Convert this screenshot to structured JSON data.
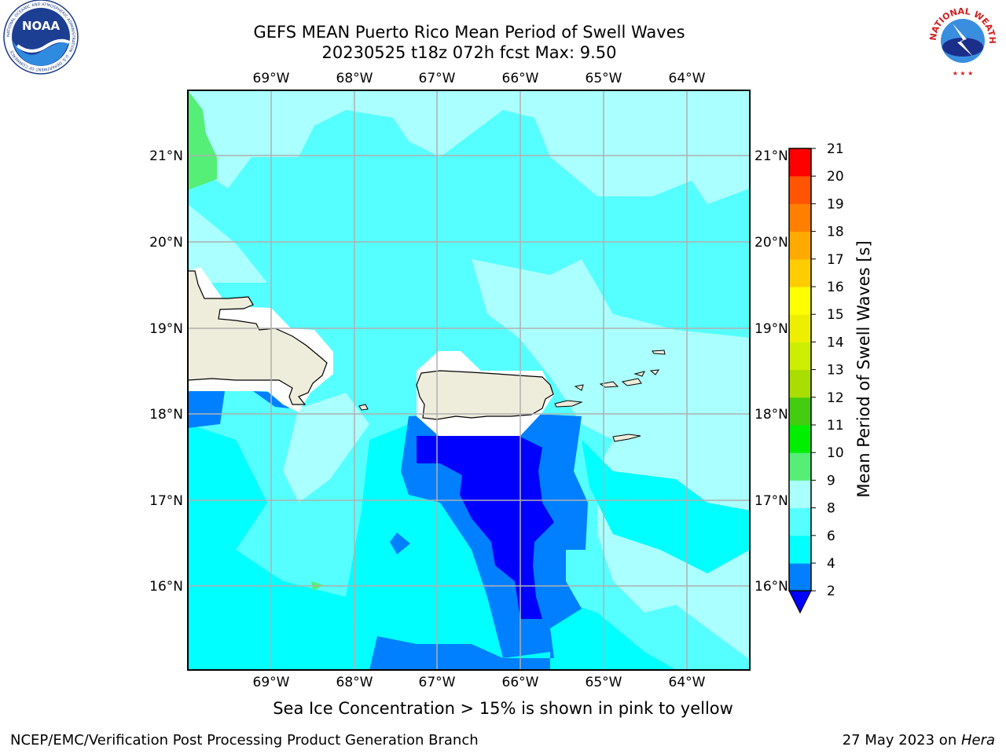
{
  "title": {
    "line1": "GEFS MEAN Puerto Rico Mean Period of Swell Waves",
    "line2": "20230525 t18z 072h fcst   Max: 9.50"
  },
  "map": {
    "lon_labels": [
      "69°W",
      "68°W",
      "67°W",
      "66°W",
      "65°W",
      "64°W"
    ],
    "lat_labels": [
      "21°N",
      "20°N",
      "19°N",
      "18°N",
      "17°N",
      "16°N"
    ],
    "colors": {
      "land": "#eeeddc",
      "ice_mask": "#ffffff",
      "grid": "#b0b0b0"
    }
  },
  "colorbar": {
    "label": "Mean Period of Swell Waves [s]",
    "ticks": [
      "21",
      "20",
      "19",
      "18",
      "17",
      "16",
      "15",
      "14",
      "13",
      "12",
      "11",
      "10",
      "9",
      "8",
      "6",
      "4",
      "2"
    ],
    "levels": [
      {
        "value": 2,
        "color": "#0000ff"
      },
      {
        "value": 4,
        "color": "#0080ff"
      },
      {
        "value": 6,
        "color": "#00ffff"
      },
      {
        "value": 8,
        "color": "#55ffff"
      },
      {
        "value": 9,
        "color": "#aaffff"
      },
      {
        "value": 10,
        "color": "#55ee77"
      },
      {
        "value": 11,
        "color": "#00ee00"
      },
      {
        "value": 12,
        "color": "#44cc11"
      },
      {
        "value": 13,
        "color": "#aadd00"
      },
      {
        "value": 14,
        "color": "#ccee00"
      },
      {
        "value": 15,
        "color": "#eeee00"
      },
      {
        "value": 16,
        "color": "#ffff00"
      },
      {
        "value": 17,
        "color": "#ffcc00"
      },
      {
        "value": 18,
        "color": "#ffaa00"
      },
      {
        "value": 19,
        "color": "#ff8000"
      },
      {
        "value": 20,
        "color": "#ff5500"
      },
      {
        "value": 21,
        "color": "#ff2a00"
      }
    ],
    "top_color": "#ff0000"
  },
  "caption": "Sea Ice Concentration > 15% is shown in pink to yellow",
  "footer": {
    "left": "NCEP/EMC/Verification Post Processing Product Generation Branch",
    "right_prefix": "27 May 2023 on ",
    "right_host": "Hera"
  },
  "logos": {
    "noaa": {
      "text": "NOAA",
      "ring_text": "NATIONAL OCEANIC AND ATMOSPHERIC ADMINISTRATION · U.S. DEPARTMENT OF COMMERCE",
      "icon": "noaa-logo"
    },
    "nws": {
      "ring_text": "NATIONAL WEATHER SERVICE",
      "icon": "nws-logo"
    }
  }
}
